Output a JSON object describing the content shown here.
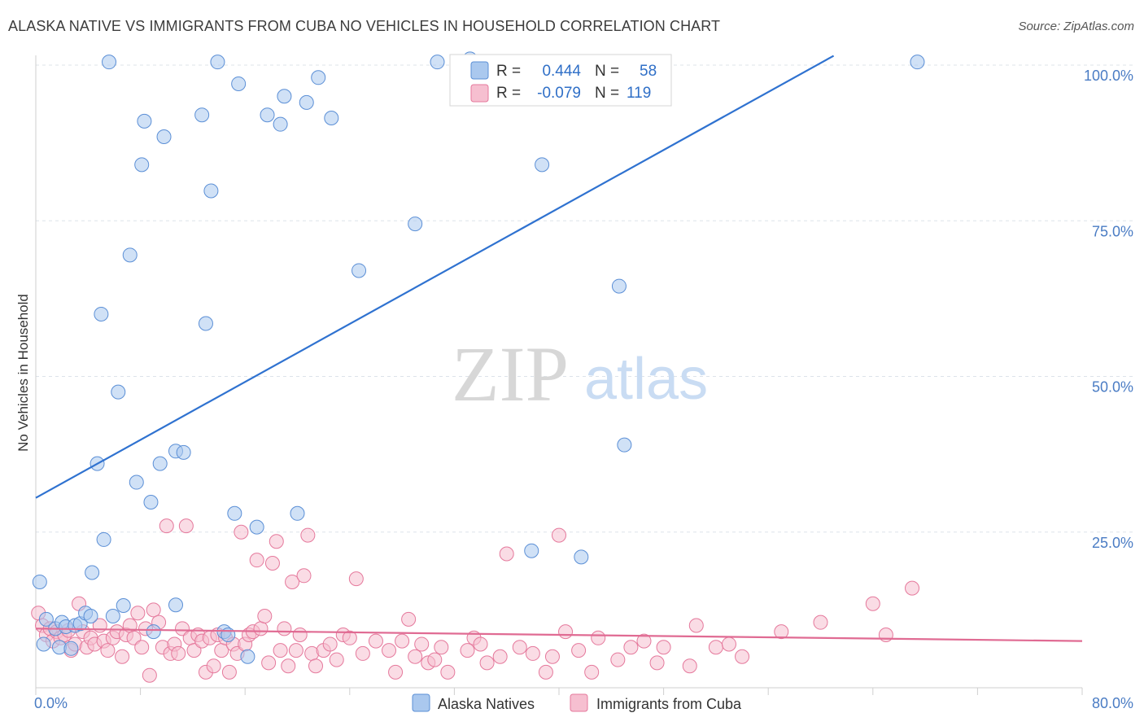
{
  "header": {
    "title": "ALASKA NATIVE VS IMMIGRANTS FROM CUBA NO VEHICLES IN HOUSEHOLD CORRELATION CHART",
    "source": "Source: ZipAtlas.com"
  },
  "watermark": {
    "zip": "ZIP",
    "atlas": "atlas"
  },
  "colors": {
    "blue_fill": "#aac8ee",
    "blue_stroke": "#5b8fd6",
    "blue_line": "#2f72d0",
    "pink_fill": "#f6bfd0",
    "pink_stroke": "#e5799c",
    "pink_line": "#e06b93",
    "tick_text": "#4a7cc4",
    "grid": "#dde3ea"
  },
  "legend": {
    "rows": [
      {
        "r_label": "R =",
        "r_value": "0.444",
        "n_label": "N =",
        "n_value": "58"
      },
      {
        "r_label": "R =",
        "r_value": "-0.079",
        "n_label": "N =",
        "n_value": "119"
      }
    ]
  },
  "chart_data": {
    "type": "scatter",
    "title": "ALASKA NATIVE VS IMMIGRANTS FROM CUBA NO VEHICLES IN HOUSEHOLD CORRELATION CHART",
    "xlabel": "",
    "ylabel": "No Vehicles in Household",
    "xlim": [
      0,
      80
    ],
    "ylim": [
      0,
      100
    ],
    "x_tick_labels": [
      "0.0%",
      "80.0%"
    ],
    "y_tick_labels": [
      "25.0%",
      "50.0%",
      "75.0%",
      "100.0%"
    ],
    "y_ticks": [
      25,
      50,
      75,
      100
    ],
    "grid": true,
    "legend_position": "top-center",
    "series": [
      {
        "name": "Alaska Natives",
        "r": 0.444,
        "n": 58,
        "trend": {
          "x": [
            0,
            61
          ],
          "y": [
            30.5,
            101.5
          ]
        },
        "points": [
          [
            0.3,
            17.0
          ],
          [
            0.6,
            7.0
          ],
          [
            0.8,
            11.0
          ],
          [
            1.5,
            9.5
          ],
          [
            1.8,
            6.5
          ],
          [
            2.0,
            10.5
          ],
          [
            2.3,
            9.8
          ],
          [
            2.7,
            6.3
          ],
          [
            3.0,
            10.0
          ],
          [
            3.4,
            10.3
          ],
          [
            3.8,
            12.0
          ],
          [
            4.2,
            11.5
          ],
          [
            4.3,
            18.5
          ],
          [
            4.7,
            36.0
          ],
          [
            5.0,
            60.0
          ],
          [
            5.2,
            23.8
          ],
          [
            5.6,
            100.5
          ],
          [
            5.9,
            11.5
          ],
          [
            6.3,
            47.5
          ],
          [
            6.7,
            13.2
          ],
          [
            7.2,
            69.5
          ],
          [
            7.7,
            33.0
          ],
          [
            8.1,
            84.0
          ],
          [
            8.3,
            91.0
          ],
          [
            8.8,
            29.8
          ],
          [
            9.0,
            9.0
          ],
          [
            9.5,
            36.0
          ],
          [
            9.8,
            88.5
          ],
          [
            10.7,
            38.0
          ],
          [
            10.7,
            13.3
          ],
          [
            11.3,
            37.8
          ],
          [
            12.7,
            92.0
          ],
          [
            13.0,
            58.5
          ],
          [
            13.4,
            79.8
          ],
          [
            13.9,
            100.5
          ],
          [
            14.4,
            9.0
          ],
          [
            14.7,
            8.5
          ],
          [
            15.2,
            28.0
          ],
          [
            15.5,
            97.0
          ],
          [
            16.2,
            5.0
          ],
          [
            16.9,
            25.8
          ],
          [
            17.7,
            92.0
          ],
          [
            18.7,
            90.5
          ],
          [
            19.0,
            95.0
          ],
          [
            20.0,
            28.0
          ],
          [
            20.7,
            94.0
          ],
          [
            21.6,
            98.0
          ],
          [
            22.6,
            91.5
          ],
          [
            24.7,
            67.0
          ],
          [
            29.0,
            74.5
          ],
          [
            30.7,
            100.5
          ],
          [
            33.2,
            101.0
          ],
          [
            37.9,
            22.0
          ],
          [
            38.7,
            84.0
          ],
          [
            41.7,
            21.0
          ],
          [
            44.6,
            64.5
          ],
          [
            45.0,
            39.0
          ],
          [
            67.4,
            100.5
          ]
        ]
      },
      {
        "name": "Immigrants from Cuba",
        "r": -0.079,
        "n": 119,
        "trend": {
          "x": [
            0,
            80
          ],
          "y": [
            9.5,
            7.5
          ]
        },
        "points": [
          [
            0.2,
            12.0
          ],
          [
            0.5,
            10.0
          ],
          [
            0.8,
            8.5
          ],
          [
            1.1,
            9.5
          ],
          [
            1.3,
            7.5
          ],
          [
            1.6,
            9.0
          ],
          [
            1.9,
            8.0
          ],
          [
            2.2,
            8.5
          ],
          [
            2.5,
            9.2
          ],
          [
            2.7,
            6.0
          ],
          [
            3.0,
            7.0
          ],
          [
            3.3,
            13.5
          ],
          [
            3.6,
            9.0
          ],
          [
            3.9,
            6.5
          ],
          [
            4.2,
            8.0
          ],
          [
            4.5,
            7.0
          ],
          [
            4.9,
            10.0
          ],
          [
            5.2,
            7.5
          ],
          [
            5.5,
            6.0
          ],
          [
            5.9,
            8.0
          ],
          [
            6.2,
            9.0
          ],
          [
            6.6,
            5.0
          ],
          [
            6.9,
            8.5
          ],
          [
            7.2,
            10.0
          ],
          [
            7.5,
            8.0
          ],
          [
            7.8,
            12.0
          ],
          [
            8.1,
            6.5
          ],
          [
            8.4,
            9.5
          ],
          [
            8.7,
            2.0
          ],
          [
            9.0,
            12.5
          ],
          [
            9.4,
            10.5
          ],
          [
            9.7,
            6.5
          ],
          [
            10.0,
            26.0
          ],
          [
            10.3,
            5.5
          ],
          [
            10.6,
            7.0
          ],
          [
            10.9,
            5.5
          ],
          [
            11.2,
            9.5
          ],
          [
            11.5,
            26.0
          ],
          [
            11.8,
            8.0
          ],
          [
            12.1,
            6.0
          ],
          [
            12.4,
            8.5
          ],
          [
            12.7,
            7.5
          ],
          [
            13.0,
            2.5
          ],
          [
            13.3,
            8.0
          ],
          [
            13.6,
            3.5
          ],
          [
            13.9,
            8.5
          ],
          [
            14.2,
            6.0
          ],
          [
            14.5,
            8.0
          ],
          [
            14.8,
            2.5
          ],
          [
            15.1,
            7.0
          ],
          [
            15.4,
            5.5
          ],
          [
            15.7,
            25.0
          ],
          [
            16.0,
            7.0
          ],
          [
            16.3,
            8.5
          ],
          [
            16.6,
            9.0
          ],
          [
            16.9,
            20.5
          ],
          [
            17.2,
            9.5
          ],
          [
            17.5,
            11.5
          ],
          [
            17.8,
            4.0
          ],
          [
            18.1,
            20.0
          ],
          [
            18.4,
            23.5
          ],
          [
            18.7,
            6.0
          ],
          [
            19.0,
            9.5
          ],
          [
            19.3,
            3.5
          ],
          [
            19.6,
            17.0
          ],
          [
            19.9,
            6.0
          ],
          [
            20.2,
            8.5
          ],
          [
            20.5,
            18.0
          ],
          [
            20.8,
            24.5
          ],
          [
            21.1,
            5.5
          ],
          [
            21.4,
            3.5
          ],
          [
            22.0,
            6.0
          ],
          [
            22.5,
            7.0
          ],
          [
            23.0,
            4.5
          ],
          [
            23.5,
            8.5
          ],
          [
            24.0,
            8.0
          ],
          [
            24.5,
            17.5
          ],
          [
            25.0,
            5.5
          ],
          [
            26.0,
            7.5
          ],
          [
            27.0,
            6.0
          ],
          [
            27.5,
            2.5
          ],
          [
            28.0,
            7.5
          ],
          [
            28.5,
            11.0
          ],
          [
            29.0,
            5.0
          ],
          [
            29.5,
            7.0
          ],
          [
            30.0,
            4.0
          ],
          [
            30.5,
            4.5
          ],
          [
            31.0,
            6.5
          ],
          [
            31.5,
            2.5
          ],
          [
            33.0,
            6.0
          ],
          [
            33.5,
            8.0
          ],
          [
            34.0,
            7.0
          ],
          [
            34.5,
            4.0
          ],
          [
            35.5,
            5.0
          ],
          [
            36.0,
            21.5
          ],
          [
            37.0,
            6.5
          ],
          [
            38.0,
            5.5
          ],
          [
            39.0,
            2.5
          ],
          [
            39.5,
            5.0
          ],
          [
            40.0,
            24.5
          ],
          [
            40.5,
            9.0
          ],
          [
            41.5,
            6.0
          ],
          [
            42.5,
            2.5
          ],
          [
            43.0,
            8.0
          ],
          [
            44.5,
            4.5
          ],
          [
            45.5,
            6.5
          ],
          [
            46.5,
            7.5
          ],
          [
            47.5,
            4.0
          ],
          [
            48.0,
            6.5
          ],
          [
            50.0,
            3.5
          ],
          [
            50.5,
            10.0
          ],
          [
            52.0,
            6.5
          ],
          [
            53.0,
            7.0
          ],
          [
            54.0,
            5.0
          ],
          [
            57.0,
            9.0
          ],
          [
            60.0,
            10.5
          ],
          [
            64.0,
            13.5
          ],
          [
            65.0,
            8.5
          ],
          [
            67.0,
            16.0
          ]
        ]
      }
    ]
  }
}
